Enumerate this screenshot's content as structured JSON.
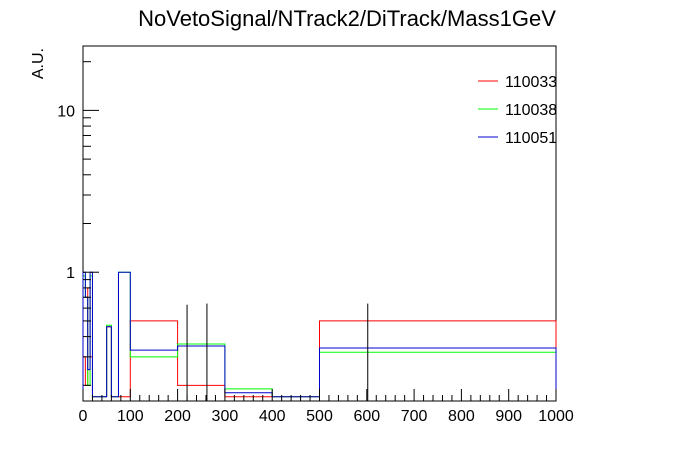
{
  "title": "NoVetoSignal/NTrack2/DiTrack/Mass1GeV",
  "colors": {
    "axis": "#000000",
    "background": "#ffffff"
  },
  "chart_data": {
    "type": "line",
    "title": "NoVetoSignal/NTrack2/DiTrack/Mass1GeV",
    "xlabel": "",
    "ylabel": "A.U.",
    "xlim": [
      0,
      1000
    ],
    "ylim": [
      0.16,
      25
    ],
    "yscale": "log",
    "x_ticks": [
      {
        "value": 0,
        "label": "0"
      },
      {
        "value": 100,
        "label": "100"
      },
      {
        "value": 200,
        "label": "200"
      },
      {
        "value": 300,
        "label": "300"
      },
      {
        "value": 400,
        "label": "400"
      },
      {
        "value": 500,
        "label": "500"
      },
      {
        "value": 600,
        "label": "600"
      },
      {
        "value": 700,
        "label": "700"
      },
      {
        "value": 800,
        "label": "800"
      },
      {
        "value": 900,
        "label": "900"
      },
      {
        "value": 1000,
        "label": "1000"
      }
    ],
    "y_ticks": [
      {
        "value": 1,
        "label": "1"
      },
      {
        "value": 10,
        "label": "10"
      }
    ],
    "legend_position": "top-right",
    "grid": false,
    "series": [
      {
        "name": "110033",
        "color": "#ff0000",
        "draw": "step",
        "bins": [
          {
            "x0": 0,
            "x1": 5,
            "y": 0.3
          },
          {
            "x0": 5,
            "x1": 10,
            "y": 0.2
          },
          {
            "x0": 10,
            "x1": 15,
            "y": 0.8
          },
          {
            "x0": 15,
            "x1": 20,
            "y": 0.3
          },
          {
            "x0": 20,
            "x1": 50,
            "y": 0.17
          },
          {
            "x0": 50,
            "x1": 60,
            "y": 0.46
          },
          {
            "x0": 60,
            "x1": 100,
            "y": 0.17
          },
          {
            "x0": 100,
            "x1": 200,
            "y": 0.5
          },
          {
            "x0": 200,
            "x1": 300,
            "y": 0.2
          },
          {
            "x0": 300,
            "x1": 400,
            "y": 0.17
          },
          {
            "x0": 400,
            "x1": 500,
            "y": 0.17
          },
          {
            "x0": 500,
            "x1": 1000,
            "y": 0.5
          }
        ],
        "errors": []
      },
      {
        "name": "110038",
        "color": "#00ff00",
        "draw": "step",
        "bins": [
          {
            "x0": 0,
            "x1": 5,
            "y": 0.95
          },
          {
            "x0": 5,
            "x1": 10,
            "y": 0.7
          },
          {
            "x0": 10,
            "x1": 15,
            "y": 0.2
          },
          {
            "x0": 15,
            "x1": 20,
            "y": 0.95
          },
          {
            "x0": 20,
            "x1": 50,
            "y": 0.17
          },
          {
            "x0": 50,
            "x1": 60,
            "y": 0.47
          },
          {
            "x0": 60,
            "x1": 75,
            "y": 0.17
          },
          {
            "x0": 75,
            "x1": 100,
            "y": 1.0
          },
          {
            "x0": 100,
            "x1": 200,
            "y": 0.3
          },
          {
            "x0": 200,
            "x1": 300,
            "y": 0.36
          },
          {
            "x0": 300,
            "x1": 400,
            "y": 0.19
          },
          {
            "x0": 400,
            "x1": 500,
            "y": 0.17
          },
          {
            "x0": 500,
            "x1": 1000,
            "y": 0.32
          }
        ],
        "errors": []
      },
      {
        "name": "110051",
        "color": "#0000cc",
        "draw": "step",
        "bins": [
          {
            "x0": 0,
            "x1": 5,
            "y": 1.0
          },
          {
            "x0": 5,
            "x1": 10,
            "y": 0.7
          },
          {
            "x0": 10,
            "x1": 15,
            "y": 0.25
          },
          {
            "x0": 15,
            "x1": 20,
            "y": 1.0
          },
          {
            "x0": 20,
            "x1": 50,
            "y": 0.17
          },
          {
            "x0": 50,
            "x1": 60,
            "y": 0.46
          },
          {
            "x0": 60,
            "x1": 75,
            "y": 0.17
          },
          {
            "x0": 75,
            "x1": 100,
            "y": 1.0
          },
          {
            "x0": 100,
            "x1": 200,
            "y": 0.33
          },
          {
            "x0": 200,
            "x1": 300,
            "y": 0.35
          },
          {
            "x0": 300,
            "x1": 400,
            "y": 0.18
          },
          {
            "x0": 400,
            "x1": 500,
            "y": 0.17
          },
          {
            "x0": 500,
            "x1": 1000,
            "y": 0.34
          }
        ],
        "errors": [
          {
            "x": 220,
            "y_low": 0.16,
            "y_high": 0.63
          },
          {
            "x": 262,
            "y_low": 0.16,
            "y_high": 0.64
          },
          {
            "x": 602,
            "y_low": 0.16,
            "y_high": 0.64
          }
        ]
      }
    ]
  }
}
